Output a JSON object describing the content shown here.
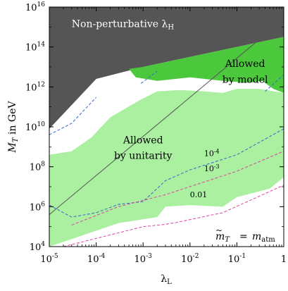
{
  "chart_data": {
    "type": "area",
    "title": "",
    "xlabel_main": "λ",
    "xlabel_sub": "L",
    "ylabel_main": "M",
    "ylabel_sub": "T",
    "ylabel_suffix": " in GeV",
    "x_scale": "log",
    "y_scale": "log",
    "xlim": [
      1e-05,
      1
    ],
    "ylim": [
      10000,
      1e+16
    ],
    "grid": false,
    "x_ticks": [
      {
        "value": 1e-05,
        "base": "10",
        "exp": "-5"
      },
      {
        "value": 0.0001,
        "base": "10",
        "exp": "-4"
      },
      {
        "value": 0.001,
        "base": "10",
        "exp": "-3"
      },
      {
        "value": 0.01,
        "base": "10",
        "exp": "-2"
      },
      {
        "value": 0.1,
        "base": "10",
        "exp": "-1"
      },
      {
        "value": 1,
        "base": "1",
        "exp": ""
      }
    ],
    "y_ticks": [
      {
        "value": 10000,
        "base": "10",
        "exp": "4"
      },
      {
        "value": 1000000,
        "base": "10",
        "exp": "6"
      },
      {
        "value": 100000000,
        "base": "10",
        "exp": "8"
      },
      {
        "value": 10000000000,
        "base": "10",
        "exp": "10"
      },
      {
        "value": 1000000000000,
        "base": "10",
        "exp": "12"
      },
      {
        "value": 100000000000000,
        "base": "10",
        "exp": "14"
      },
      {
        "value": 1e+16,
        "base": "10",
        "exp": "16"
      }
    ],
    "regions": [
      {
        "name_main": "Non-perturbative λ",
        "name_sub": "H",
        "color": "#555555",
        "boundary": [
          [
            1e-05,
            1e+16
          ],
          [
            1,
            1e+16
          ],
          [
            1,
            320000000000000.0
          ],
          [
            0.1,
            100000000000000.0
          ],
          [
            0.01,
            32000000000000.0
          ],
          [
            0.001,
            10000000000000.0
          ],
          [
            0.0001,
            2500000000000.0
          ],
          [
            1e-05,
            8000000000.0
          ]
        ]
      },
      {
        "name_main": "Allowed by unitarity",
        "color": "#aaf0a0",
        "boundary": [
          [
            1e-05,
            400000000.0
          ],
          [
            3e-05,
            600000000.0
          ],
          [
            8e-05,
            3000000000.0
          ],
          [
            0.0002,
            30000000000.0
          ],
          [
            0.0008,
            200000000000.0
          ],
          [
            0.002,
            600000000000.0
          ],
          [
            0.006,
            700000000000.0
          ],
          [
            0.02,
            600000000000.0
          ],
          [
            0.05,
            500000000000.0
          ],
          [
            0.1,
            800000000000.0
          ],
          [
            0.3,
            800000000000.0
          ],
          [
            1,
            500000000000.0
          ],
          [
            1,
            30000000.0
          ],
          [
            0.5,
            8000000.0
          ],
          [
            0.1,
            3000000.0
          ],
          [
            0.05,
            1000000.0
          ],
          [
            0.01,
            1200000.0
          ],
          [
            0.003,
            1000000.0
          ],
          [
            0.002,
            300000.0
          ],
          [
            0.0003,
            150000.0
          ],
          [
            1e-05,
            10000
          ]
        ]
      },
      {
        "name_main": "Allowed by model",
        "color": "#4cc83c",
        "boundary": [
          [
            0.0005,
            8000000000000.0
          ],
          [
            0.001,
            10000000000000.0
          ],
          [
            0.01,
            32000000000000.0
          ],
          [
            0.1,
            100000000000000.0
          ],
          [
            1,
            320000000000000.0
          ],
          [
            1,
            500000000000.0
          ],
          [
            0.6,
            800000000000.0
          ],
          [
            0.35,
            2000000000000.0
          ],
          [
            0.18,
            1600000000000.0
          ],
          [
            0.05,
            2000000000000.0
          ],
          [
            0.01,
            3000000000000.0
          ],
          [
            0.002,
            2000000000000.0
          ],
          [
            0.0007,
            3000000000000.0
          ]
        ]
      }
    ],
    "lines": [
      {
        "name": "unitarity-line",
        "color": "#555555",
        "style": "solid",
        "points": [
          [
            1e-05,
            400000.0
          ],
          [
            1,
            2500000000000000.0
          ]
        ]
      }
    ],
    "contours": [
      {
        "name": "contour-1e-4",
        "label": "10",
        "label_exp": "-4",
        "label_at": [
          0.02,
          350000000.0
        ],
        "color": "#3366cc",
        "style": "dashed",
        "points": [
          [
            1e-05,
            1200000.0
          ],
          [
            3e-05,
            300000.0
          ],
          [
            0.0001,
            500000.0
          ],
          [
            0.0003,
            1300000.0
          ],
          [
            0.001,
            1800000.0
          ],
          [
            0.003,
            20000000.0
          ],
          [
            0.01,
            70000000.0
          ],
          [
            0.1,
            400000000.0
          ],
          [
            1,
            8000000000.0
          ]
        ]
      },
      {
        "name": "contour-1e-3",
        "label": "10",
        "label_exp": "-3",
        "label_at": [
          0.02,
          60000000.0
        ],
        "color": "#e040a0",
        "style": "dashed",
        "points": [
          [
            3e-05,
            120000.0
          ],
          [
            0.0003,
            1000000.0
          ],
          [
            0.003,
            4000000.0
          ],
          [
            0.1,
            60000000.0
          ],
          [
            1,
            600000000.0
          ]
        ]
      },
      {
        "name": "contour-001",
        "label": "0.01",
        "label_at": [
          0.01,
          3000000.0
        ],
        "color": "#e040a0",
        "style": "dashed",
        "points": [
          [
            2e-05,
            10000
          ],
          [
            0.001,
            100000.0
          ],
          [
            0.003,
            130000.0
          ],
          [
            0.005,
            160000.0
          ],
          [
            0.05,
            500000.0
          ],
          [
            1,
            12000000.0
          ]
        ]
      },
      {
        "name": "upper-contour-left",
        "color": "#3366cc",
        "style": "dashed",
        "points": [
          [
            1e-05,
            4000000000.0
          ],
          [
            3e-05,
            15000000000.0
          ],
          [
            0.0001,
            300000000000.0
          ]
        ]
      },
      {
        "name": "upper-contour-mid",
        "color": "#3366cc",
        "style": "dashed",
        "points": [
          [
            0.0009,
            1500000000000.0
          ],
          [
            0.002,
            6000000000000.0
          ]
        ]
      },
      {
        "name": "upper-contour-right",
        "color": "#3366cc",
        "style": "dashed",
        "points": [
          [
            0.4,
            600000000000.0
          ],
          [
            1,
            4000000000000.0
          ]
        ]
      }
    ],
    "annotations": [
      {
        "name": "label-nonpert",
        "main": "Non-perturbative λ",
        "sub": "H",
        "at": [
          3e-05,
          1000000000000000.0
        ],
        "anchor": "start"
      },
      {
        "name": "label-model-1",
        "main": "Allowed",
        "at": [
          0.15,
          10000000000000.0
        ],
        "anchor": "middle"
      },
      {
        "name": "label-model-2",
        "main": "by model",
        "at": [
          0.15,
          1600000000000.0
        ],
        "anchor": "middle"
      },
      {
        "name": "label-unitarity-1",
        "main": "Allowed",
        "at": [
          0.001,
          1500000000.0
        ],
        "anchor": "middle"
      },
      {
        "name": "label-unitarity-2",
        "main": "by unitarity",
        "at": [
          0.001,
          250000000.0
        ],
        "anchor": "middle"
      }
    ],
    "legend_text": {
      "lhs_main": "m",
      "lhs_sub": "T",
      "lhs_accent": "~",
      "equals": "=",
      "rhs_main": "m",
      "rhs_sub": "atm"
    }
  }
}
